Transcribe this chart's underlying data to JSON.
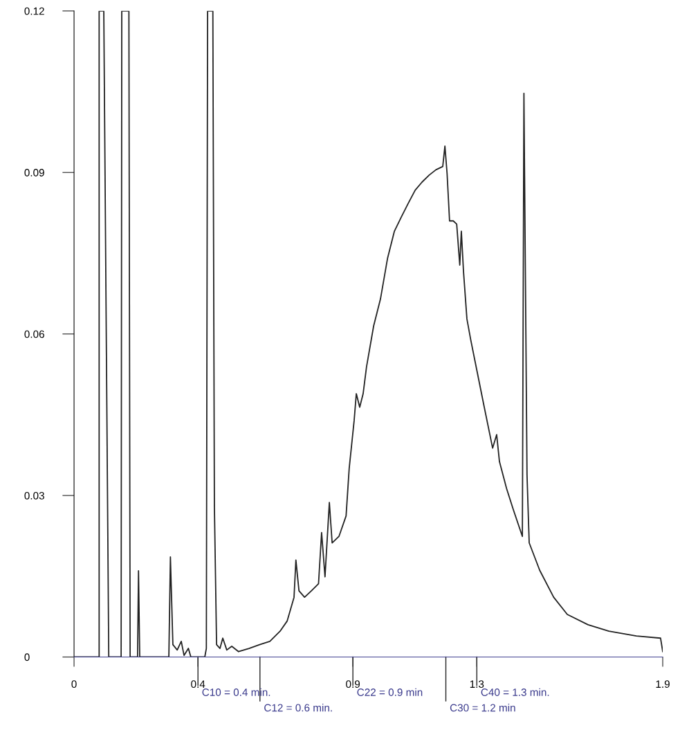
{
  "chart_data": {
    "type": "line",
    "color": "#222222",
    "x": [
      0,
      0.081,
      0.081,
      0.096,
      0.112,
      0.152,
      0.154,
      0.177,
      0.181,
      0.205,
      0.208,
      0.212,
      0.306,
      0.311,
      0.319,
      0.333,
      0.346,
      0.355,
      0.369,
      0.377,
      0.422,
      0.427,
      0.431,
      0.448,
      0.453,
      0.46,
      0.471,
      0.48,
      0.493,
      0.509,
      0.531,
      0.565,
      0.599,
      0.632,
      0.665,
      0.688,
      0.71,
      0.716,
      0.726,
      0.744,
      0.766,
      0.789,
      0.799,
      0.81,
      0.824,
      0.833,
      0.855,
      0.878,
      0.888,
      0.904,
      0.911,
      0.922,
      0.933,
      0.944,
      0.967,
      0.989,
      1.012,
      1.034,
      1.056,
      1.078,
      1.101,
      1.123,
      1.146,
      1.168,
      1.19,
      1.197,
      1.204,
      1.212,
      1.224,
      1.235,
      1.245,
      1.25,
      1.257,
      1.268,
      1.28,
      1.302,
      1.324,
      1.351,
      1.364,
      1.373,
      1.396,
      1.417,
      1.447,
      1.452,
      1.462,
      1.469,
      1.503,
      1.548,
      1.592,
      1.659,
      1.726,
      1.815,
      1.893,
      1.9
    ],
    "values": [
      0,
      0,
      0.12,
      0.12,
      0,
      0,
      0.12,
      0.12,
      0,
      0,
      0.016,
      0,
      0,
      0.0186,
      0.0023,
      0.0013,
      0.0029,
      0.0003,
      0.0016,
      0,
      0,
      0.0016,
      0.12,
      0.12,
      0.028,
      0.0023,
      0.0016,
      0.0035,
      0.0013,
      0.002,
      0.001,
      0.0016,
      0.0023,
      0.0029,
      0.0048,
      0.0067,
      0.0111,
      0.018,
      0.0123,
      0.0111,
      0.0123,
      0.0136,
      0.0231,
      0.0149,
      0.0287,
      0.0212,
      0.0224,
      0.0262,
      0.035,
      0.0439,
      0.0489,
      0.0464,
      0.0489,
      0.0539,
      0.0615,
      0.0665,
      0.0741,
      0.0791,
      0.0817,
      0.0842,
      0.0867,
      0.0882,
      0.0895,
      0.0905,
      0.0911,
      0.0949,
      0.0898,
      0.081,
      0.081,
      0.0804,
      0.0728,
      0.0791,
      0.0716,
      0.0628,
      0.059,
      0.0527,
      0.0464,
      0.0388,
      0.0413,
      0.0363,
      0.0313,
      0.0275,
      0.0224,
      0.1047,
      0.0338,
      0.0212,
      0.0161,
      0.0111,
      0.0079,
      0.006,
      0.0048,
      0.0039,
      0.0035,
      0.001
    ],
    "xlim": [
      0,
      1.9
    ],
    "ylim": [
      0,
      0.12
    ],
    "xticks": [
      0,
      0.4,
      0.9,
      1.3,
      1.9
    ],
    "ref_lines": [
      {
        "axis": "x",
        "value": 0.4,
        "label": "C10 = 0.4 min."
      },
      {
        "axis": "x",
        "value": 0.6,
        "label": "C12 = 0.6 min."
      },
      {
        "axis": "x",
        "value": 0.9,
        "label": "C22 = 0.9 min"
      },
      {
        "axis": "x",
        "value": 1.2,
        "label": "C30 = 1.2 min"
      },
      {
        "axis": "x",
        "value": 1.3,
        "label": "C40 = 1.3 min."
      }
    ],
    "yticks": [
      0,
      0.03,
      0.06,
      0.09,
      0.12
    ],
    "grid": false
  }
}
